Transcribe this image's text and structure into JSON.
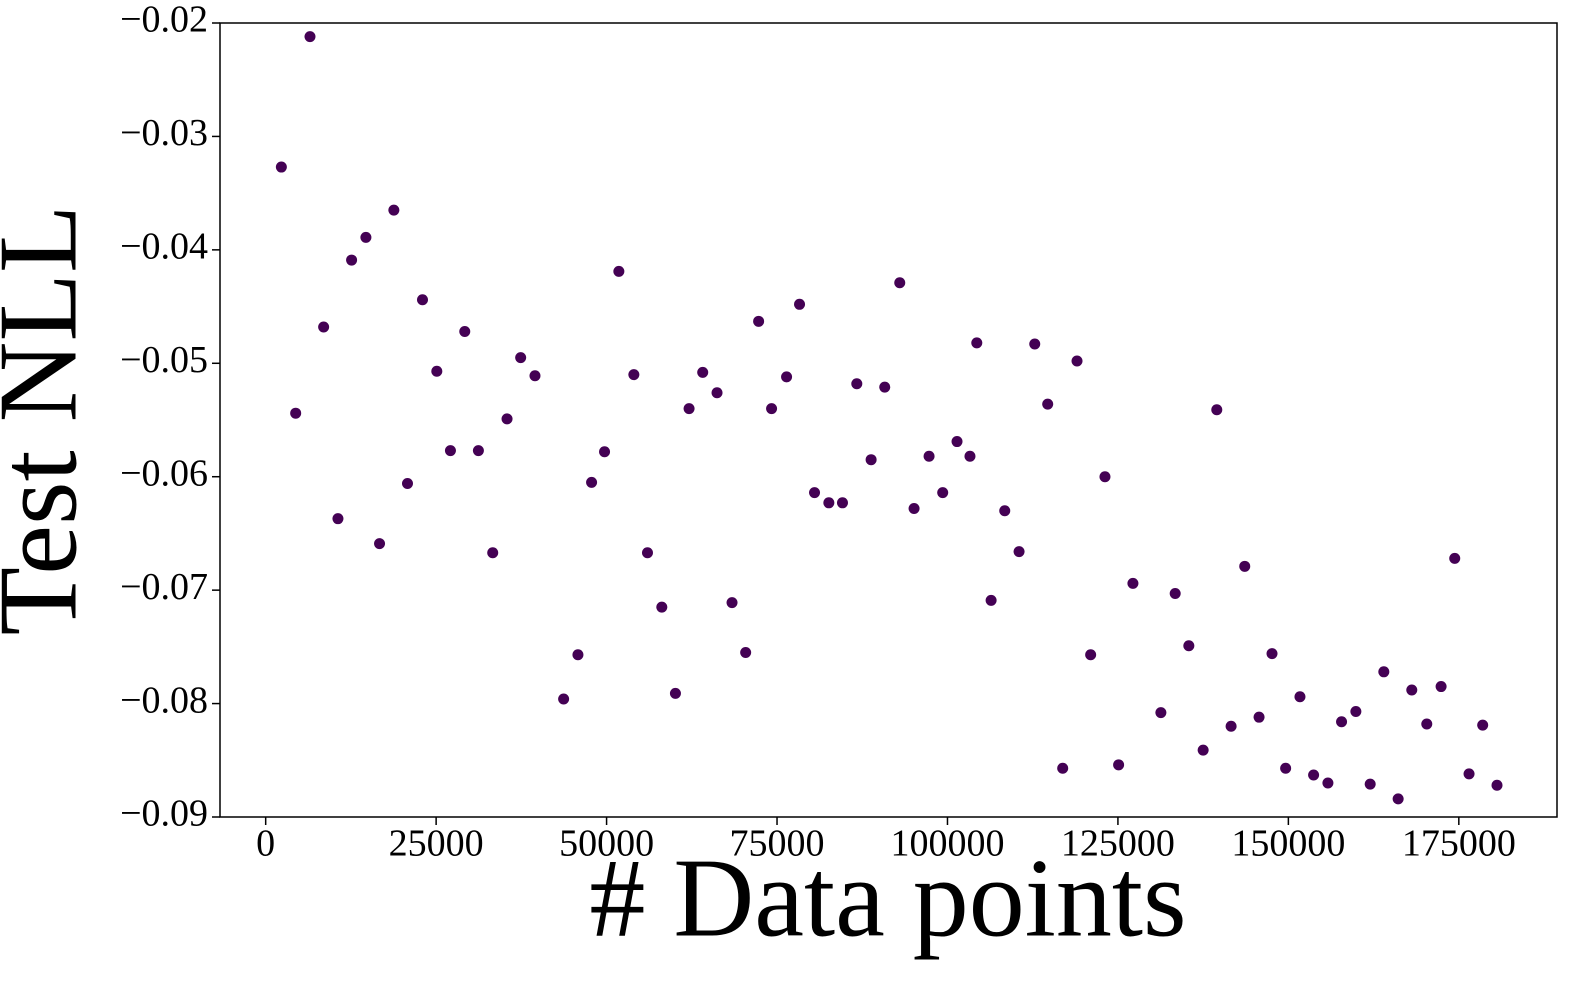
{
  "chart_data": {
    "type": "scatter",
    "x_label": "# Data points",
    "y_label": "Test NLL",
    "color": "#440154",
    "xlim": [
      -6700,
      189400
    ],
    "ylim": [
      -0.09,
      -0.02
    ],
    "xticks": [
      0,
      25000,
      50000,
      75000,
      100000,
      125000,
      150000,
      175000
    ],
    "yticks": [
      {
        "value": -0.09,
        "label": "−0.09"
      },
      {
        "value": -0.08,
        "label": "−0.08"
      },
      {
        "value": -0.07,
        "label": "−0.07"
      },
      {
        "value": -0.06,
        "label": "−0.06"
      },
      {
        "value": -0.05,
        "label": "−0.05"
      },
      {
        "value": -0.04,
        "label": "−0.04"
      },
      {
        "value": -0.03,
        "label": "−0.03"
      },
      {
        "value": -0.02,
        "label": "−0.02"
      }
    ],
    "series": [
      {
        "name": "Test NLL",
        "color": "#440154",
        "x": [
          2300,
          4400,
          6500,
          8500,
          10600,
          12600,
          14700,
          16700,
          18800,
          20800,
          23000,
          25100,
          27100,
          29200,
          31200,
          33300,
          35400,
          37400,
          39500,
          43700,
          45800,
          47800,
          49700,
          51800,
          54000,
          56000,
          58100,
          60100,
          62100,
          64100,
          66200,
          68400,
          70400,
          72300,
          74200,
          76400,
          78300,
          80500,
          82600,
          84600,
          86700,
          88800,
          90800,
          93000,
          95100,
          97300,
          99300,
          101400,
          103300,
          104300,
          106400,
          108400,
          110500,
          112800,
          114700,
          116900,
          119000,
          121000,
          123100,
          125100,
          127200,
          131300,
          133400,
          135400,
          137500,
          139500,
          141600,
          143600,
          145700,
          147600,
          149600,
          151700,
          153700,
          155800,
          157800,
          159900,
          162000,
          164000,
          166100,
          168100,
          170300,
          172400,
          174400,
          176500,
          178500,
          180600
        ],
        "values": [
          -0.0327,
          -0.0544,
          -0.0212,
          -0.0468,
          -0.0637,
          -0.0409,
          -0.0389,
          -0.0659,
          -0.0365,
          -0.0606,
          -0.0444,
          -0.0507,
          -0.0577,
          -0.0472,
          -0.0577,
          -0.0667,
          -0.0549,
          -0.0495,
          -0.0511,
          -0.0796,
          -0.0757,
          -0.0605,
          -0.0578,
          -0.0419,
          -0.051,
          -0.0667,
          -0.0715,
          -0.0791,
          -0.054,
          -0.0508,
          -0.0526,
          -0.0711,
          -0.0755,
          -0.0463,
          -0.054,
          -0.0512,
          -0.0448,
          -0.0614,
          -0.0623,
          -0.0623,
          -0.0518,
          -0.0585,
          -0.0521,
          -0.0429,
          -0.0628,
          -0.0582,
          -0.0614,
          -0.0569,
          -0.0582,
          -0.0482,
          -0.0709,
          -0.063,
          -0.0666,
          -0.0483,
          -0.0536,
          -0.0857,
          -0.0498,
          -0.0757,
          -0.06,
          -0.0854,
          -0.0694,
          -0.0808,
          -0.0703,
          -0.0749,
          -0.0841,
          -0.0541,
          -0.082,
          -0.0679,
          -0.0812,
          -0.0756,
          -0.0857,
          -0.0794,
          -0.0863,
          -0.087,
          -0.0816,
          -0.0807,
          -0.0871,
          -0.0772,
          -0.0884,
          -0.0788,
          -0.0818,
          -0.0785,
          -0.0672,
          -0.0862,
          -0.0819,
          -0.0872
        ]
      }
    ]
  }
}
